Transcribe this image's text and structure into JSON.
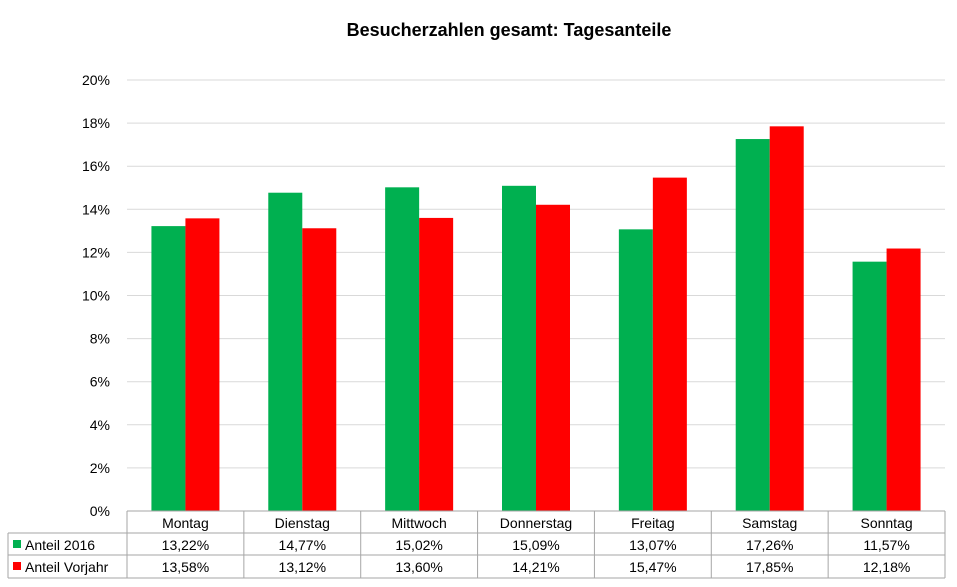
{
  "chart_data": {
    "type": "bar",
    "title": "Besucherzahlen gesamt: Tagesanteile",
    "xlabel": "",
    "ylabel": "",
    "ylim": [
      0,
      20
    ],
    "yticks": [
      "0%",
      "2%",
      "4%",
      "6%",
      "8%",
      "10%",
      "12%",
      "14%",
      "16%",
      "18%",
      "20%"
    ],
    "grid": true,
    "legend": "data-table",
    "categories": [
      "Montag",
      "Dienstag",
      "Mittwoch",
      "Donnerstag",
      "Freitag",
      "Samstag",
      "Sonntag"
    ],
    "series": [
      {
        "name": "Anteil 2016",
        "color": "#00b050",
        "values": [
          13.22,
          14.77,
          15.02,
          15.09,
          13.07,
          17.26,
          11.57
        ],
        "labels": [
          "13,22%",
          "14,77%",
          "15,02%",
          "15,09%",
          "13,07%",
          "17,26%",
          "11,57%"
        ]
      },
      {
        "name": "Anteil Vorjahr",
        "color": "#ff0000",
        "values": [
          13.58,
          13.12,
          13.6,
          14.21,
          15.47,
          17.85,
          12.18
        ],
        "labels": [
          "13,58%",
          "13,12%",
          "13,60%",
          "14,21%",
          "15,47%",
          "17,85%",
          "12,18%"
        ]
      }
    ]
  }
}
